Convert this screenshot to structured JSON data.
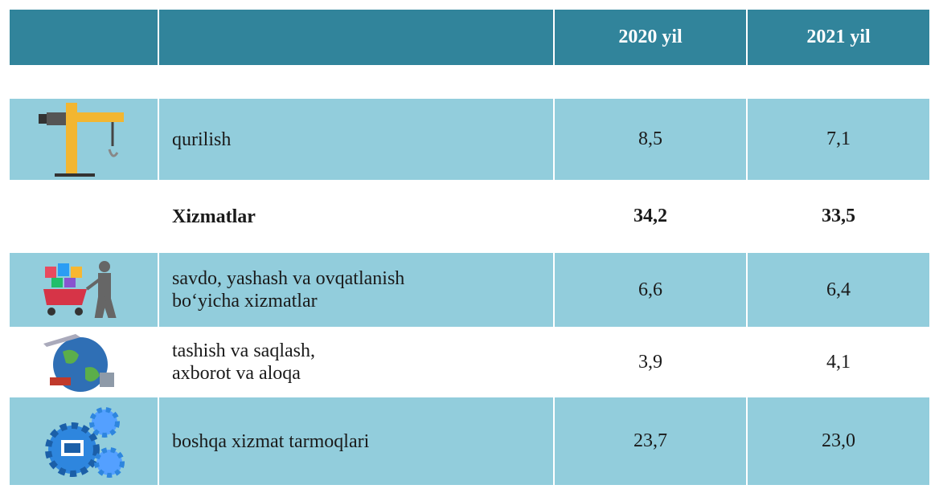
{
  "table": {
    "header": [
      "2020 yil",
      "2021 yil"
    ],
    "rows": [
      {
        "label": [
          "qurilish"
        ],
        "values": [
          "8,5",
          "7,1"
        ]
      },
      {
        "label": [
          "Xizmatlar"
        ],
        "values": [
          "34,2",
          "33,5"
        ]
      },
      {
        "label": [
          "savdo, yashash va ovqatlanish",
          "bo‘yicha xizmatlar"
        ],
        "values": [
          "6,6",
          "6,4"
        ]
      },
      {
        "label": [
          "tashish va saqlash,",
          "axborot va aloqa"
        ],
        "values": [
          "3,9",
          "4,1"
        ]
      },
      {
        "label": [
          "boshqa xizmat tarmoqlari"
        ],
        "values": [
          "23,7",
          "23,0"
        ]
      }
    ]
  }
}
